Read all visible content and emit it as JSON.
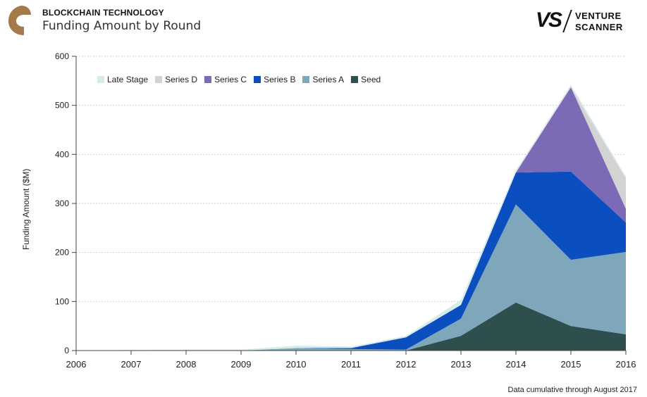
{
  "header": {
    "kicker": "BLOCKCHAIN TECHNOLOGY",
    "title": "Funding Amount by Round",
    "brand_mark": "VS",
    "brand_line1": "VENTURE",
    "brand_line2": "SCANNER"
  },
  "footnote": "Data cumulative through August 2017",
  "colors": {
    "late_stage": "#d7ece9",
    "series_d": "#d3d3d3",
    "series_c": "#7d6ab7",
    "series_b": "#0a4ebf",
    "series_a": "#7fa7bb",
    "seed": "#2f4f4f",
    "logo": "#a57a4a"
  },
  "chart_data": {
    "type": "area",
    "stacked": true,
    "title": "Funding Amount by Round",
    "xlabel": "",
    "ylabel": "Funding Amount ($M)",
    "x": [
      "2006",
      "2007",
      "2008",
      "2009",
      "2010",
      "2011",
      "2012",
      "2013",
      "2014",
      "2015",
      "2016"
    ],
    "ylim": [
      0,
      600
    ],
    "yticks": [
      0,
      100,
      200,
      300,
      400,
      500,
      600
    ],
    "grid": true,
    "legend_position": "top-left",
    "series": [
      {
        "name": "Seed",
        "color_key": "seed",
        "values": [
          0,
          0,
          0,
          0,
          0,
          0,
          0,
          30,
          98,
          50,
          33
        ]
      },
      {
        "name": "Series A",
        "color_key": "series_a",
        "values": [
          0,
          0,
          0,
          0,
          5,
          3,
          2,
          35,
          200,
          135,
          168
        ]
      },
      {
        "name": "Series B",
        "color_key": "series_b",
        "values": [
          0,
          0,
          0,
          0,
          0,
          2,
          25,
          28,
          65,
          180,
          60
        ]
      },
      {
        "name": "Series C",
        "color_key": "series_c",
        "values": [
          0,
          0,
          0,
          0,
          0,
          0,
          0,
          0,
          0,
          172,
          28
        ]
      },
      {
        "name": "Series D",
        "color_key": "series_d",
        "values": [
          0,
          0,
          0,
          0,
          0,
          0,
          0,
          0,
          0,
          0,
          62
        ]
      },
      {
        "name": "Late Stage",
        "color_key": "late_stage",
        "values": [
          0,
          1,
          2,
          2,
          5,
          3,
          3,
          10,
          5,
          5,
          4
        ]
      }
    ],
    "legend_order": [
      "Late Stage",
      "Series D",
      "Series C",
      "Series B",
      "Series A",
      "Seed"
    ]
  }
}
